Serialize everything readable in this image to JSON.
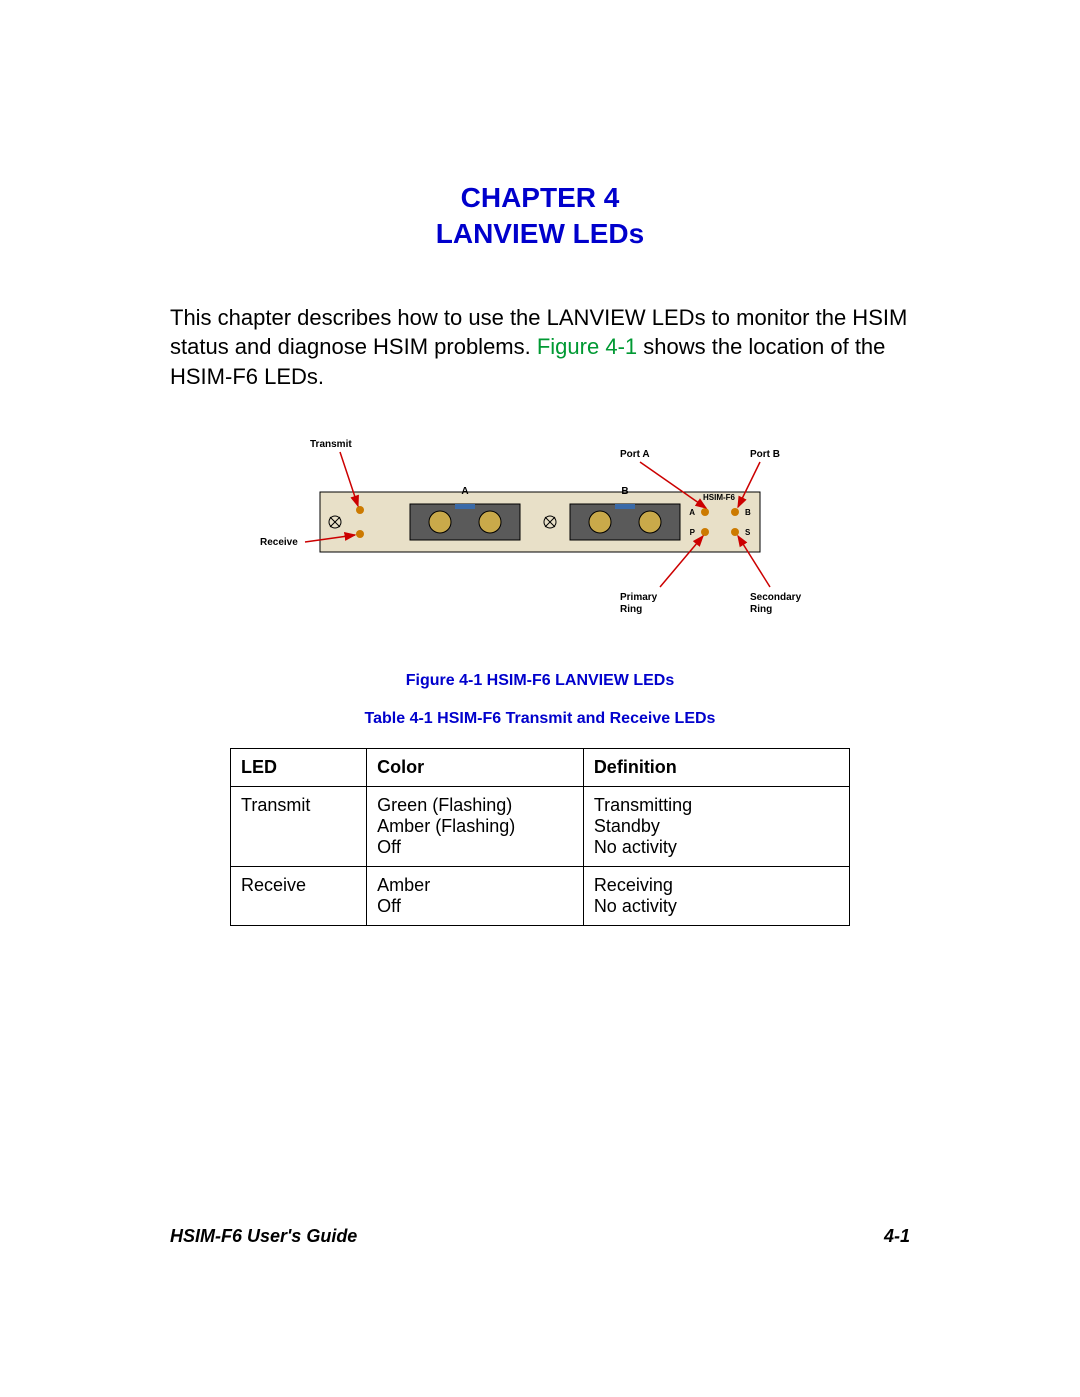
{
  "heading": {
    "chapter": "CHAPTER 4",
    "title": "LANVIEW LEDs"
  },
  "paragraph": {
    "part1": "This chapter describes how to use the LANVIEW LEDs to monitor the HSIM status and diagnose HSIM problems. ",
    "figref": "Figure 4-1",
    "part2": " shows the location of the HSIM-F6 LEDs."
  },
  "diagram": {
    "labels": {
      "transmit": "Transmit",
      "receive": "Receive",
      "portA": "Port A",
      "portB": "Port B",
      "hsim": "HSIM-F6",
      "primary": "Primary Ring",
      "secondary": "Secondary Ring",
      "A": "A",
      "B": "B",
      "P": "P",
      "S": "S"
    },
    "colors": {
      "panel_fill": "#e8e0c8",
      "panel_stroke": "#000000",
      "screw_fill": "#404040",
      "led_amber": "#cc7a00",
      "port_fill": "#5a5a5a",
      "port_hole": "#c9a94a",
      "port_highlight": "#3a6aa8",
      "arrow": "#cc0000"
    }
  },
  "figure_caption": "Figure 4-1    HSIM-F6 LANVIEW LEDs",
  "table_caption": "Table 4-1    HSIM-F6 Transmit and Receive LEDs",
  "table": {
    "headers": [
      "LED",
      "Color",
      "Definition"
    ],
    "rows": [
      {
        "led": "Transmit",
        "color": "Green (Flashing)\nAmber (Flashing)\nOff",
        "def": "Transmitting\nStandby\nNo activity"
      },
      {
        "led": "Receive",
        "color": "Amber\nOff",
        "def": "Receiving\nNo activity"
      }
    ]
  },
  "footer": {
    "left": "HSIM-F6 User's Guide",
    "right": "4-1"
  }
}
